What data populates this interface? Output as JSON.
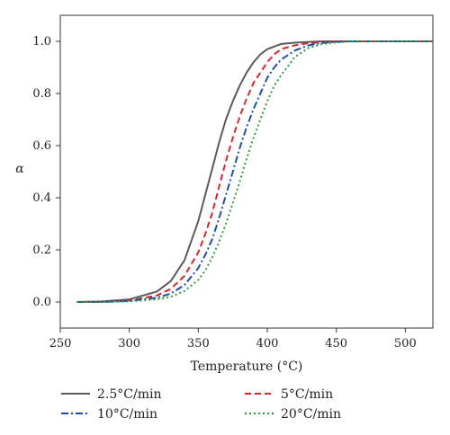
{
  "chart_data": {
    "type": "line",
    "xlabel": "Temperature (°C)",
    "ylabel": "α",
    "xlim": [
      250,
      520
    ],
    "ylim": [
      -0.1,
      1.1
    ],
    "xticks": [
      250,
      300,
      350,
      400,
      450,
      500
    ],
    "yticks": [
      0.0,
      0.2,
      0.4,
      0.6,
      0.8,
      1.0
    ],
    "ytick_labels": [
      "0.0",
      "0.2",
      "0.4",
      "0.6",
      "0.8",
      "1.0"
    ],
    "grid": false,
    "legend_position": "bottom",
    "x": [
      262,
      280,
      300,
      320,
      330,
      340,
      350,
      355,
      360,
      365,
      370,
      375,
      380,
      385,
      390,
      395,
      400,
      405,
      410,
      420,
      430,
      440,
      450,
      460,
      480,
      500,
      520
    ],
    "series": [
      {
        "name": "2.5°C/min",
        "color": "#5a5a5a",
        "style": "solid",
        "values": [
          0.0,
          0.002,
          0.01,
          0.04,
          0.08,
          0.16,
          0.31,
          0.41,
          0.51,
          0.61,
          0.7,
          0.77,
          0.83,
          0.88,
          0.92,
          0.95,
          0.97,
          0.98,
          0.99,
          0.995,
          0.998,
          1.0,
          1.0,
          1.0,
          1.0,
          1.0,
          1.0
        ]
      },
      {
        "name": "5°C/min",
        "color": "#d7262b",
        "style": "dashed",
        "values": [
          0.0,
          0.001,
          0.006,
          0.025,
          0.05,
          0.1,
          0.19,
          0.26,
          0.34,
          0.44,
          0.54,
          0.63,
          0.71,
          0.78,
          0.84,
          0.88,
          0.92,
          0.95,
          0.97,
          0.985,
          0.993,
          0.997,
          1.0,
          1.0,
          1.0,
          1.0,
          1.0
        ]
      },
      {
        "name": "10°C/min",
        "color": "#1f4fa3",
        "style": "dashdot",
        "values": [
          0.0,
          0.0,
          0.004,
          0.016,
          0.032,
          0.065,
          0.13,
          0.18,
          0.24,
          0.32,
          0.41,
          0.5,
          0.59,
          0.67,
          0.74,
          0.8,
          0.86,
          0.9,
          0.93,
          0.965,
          0.985,
          0.994,
          0.998,
          1.0,
          1.0,
          1.0,
          1.0
        ]
      },
      {
        "name": "20°C/min",
        "color": "#2e9a3e",
        "style": "dotted",
        "values": [
          0.0,
          0.0,
          0.002,
          0.01,
          0.02,
          0.042,
          0.085,
          0.12,
          0.17,
          0.23,
          0.3,
          0.38,
          0.46,
          0.55,
          0.63,
          0.7,
          0.77,
          0.83,
          0.87,
          0.94,
          0.975,
          0.99,
          0.996,
          0.999,
          1.0,
          1.0,
          1.0
        ]
      }
    ]
  }
}
